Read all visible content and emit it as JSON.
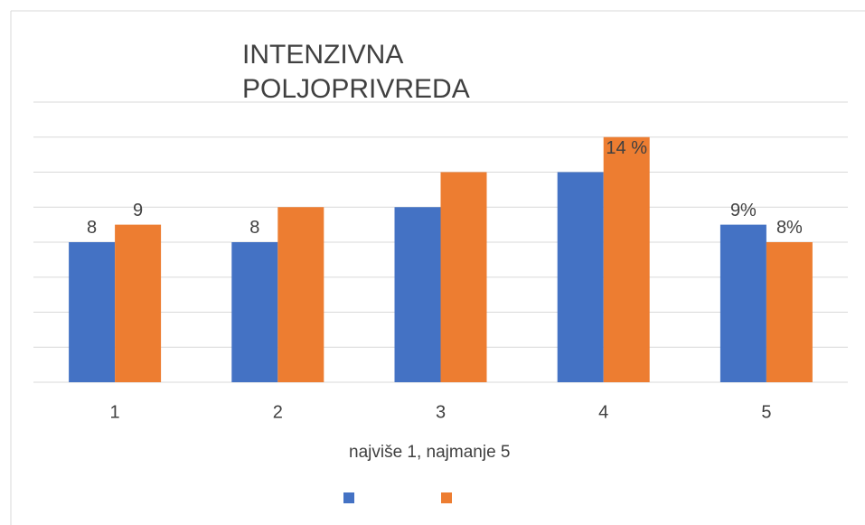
{
  "chart_data": {
    "type": "bar",
    "title": "INTENZIVNA POLJOPRIVREDA",
    "categories": [
      "1",
      "2",
      "3",
      "4",
      "5"
    ],
    "series": [
      {
        "color": "#4472c4",
        "values": [
          8,
          8,
          10,
          12,
          9
        ],
        "value_labels": [
          "8",
          "8",
          null,
          null,
          "9%"
        ]
      },
      {
        "color": "#ed7d31",
        "values": [
          9,
          10,
          12,
          14,
          8
        ],
        "value_labels": [
          "9",
          null,
          null,
          "14 %",
          "8%"
        ]
      }
    ],
    "ylim": [
      0,
      16
    ],
    "yticks": [
      0,
      2,
      4,
      6,
      8,
      10,
      12,
      14,
      16
    ],
    "grid": true,
    "legend_title": "najviše 1, najmanje 5"
  }
}
